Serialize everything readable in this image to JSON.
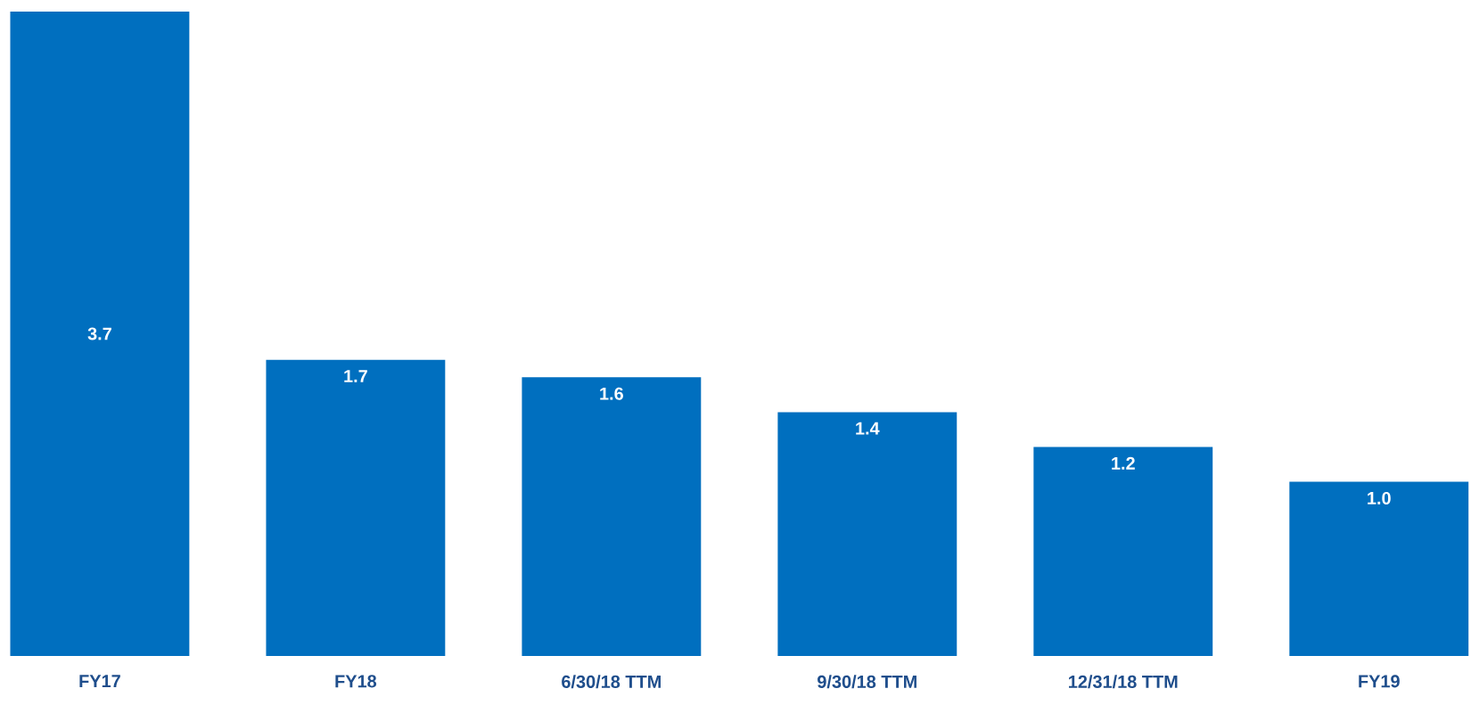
{
  "chart_data": {
    "type": "bar",
    "categories": [
      "FY17",
      "FY18",
      "6/30/18 TTM",
      "9/30/18 TTM",
      "12/31/18 TTM",
      "FY19"
    ],
    "values": [
      3.7,
      1.7,
      1.6,
      1.4,
      1.2,
      1.0
    ],
    "color": "#006fbf",
    "value_labels": [
      "3.7",
      "1.7",
      "1.6",
      "1.4",
      "1.2",
      "1.0"
    ]
  }
}
